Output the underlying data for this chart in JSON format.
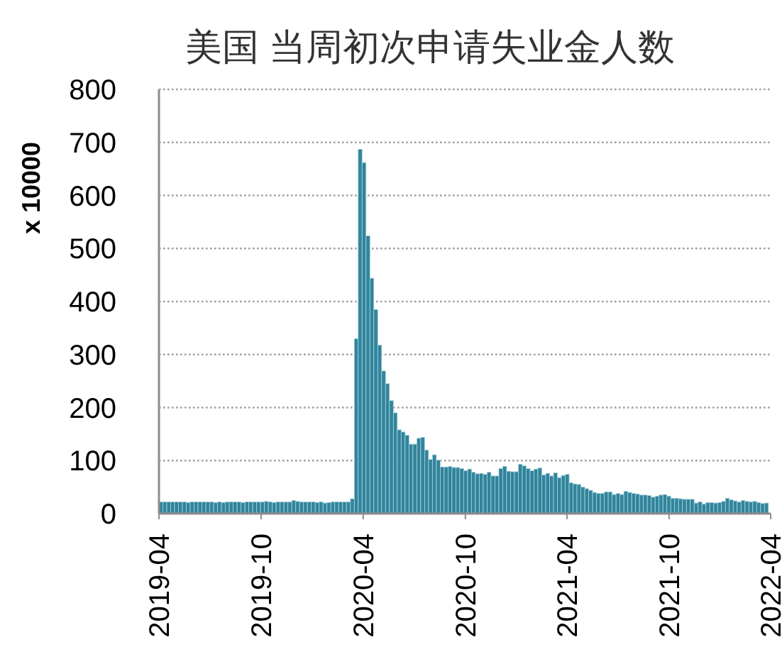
{
  "chart_data": {
    "type": "bar",
    "title": "美国 当周初次申请失业金人数",
    "ylabel": "x 10000",
    "color": "#31849b",
    "x": [
      "2019-04-01",
      "2019-04-08",
      "2019-04-15",
      "2019-04-22",
      "2019-04-29",
      "2019-05-06",
      "2019-05-13",
      "2019-05-20",
      "2019-05-27",
      "2019-06-03",
      "2019-06-10",
      "2019-06-17",
      "2019-06-24",
      "2019-07-01",
      "2019-07-08",
      "2019-07-15",
      "2019-07-22",
      "2019-07-29",
      "2019-08-05",
      "2019-08-12",
      "2019-08-19",
      "2019-08-26",
      "2019-09-02",
      "2019-09-09",
      "2019-09-16",
      "2019-09-23",
      "2019-09-30",
      "2019-10-07",
      "2019-10-14",
      "2019-10-21",
      "2019-10-28",
      "2019-11-04",
      "2019-11-11",
      "2019-11-18",
      "2019-11-25",
      "2019-12-02",
      "2019-12-09",
      "2019-12-16",
      "2019-12-23",
      "2019-12-30",
      "2020-01-06",
      "2020-01-13",
      "2020-01-20",
      "2020-01-27",
      "2020-02-03",
      "2020-02-10",
      "2020-02-17",
      "2020-02-24",
      "2020-03-02",
      "2020-03-09",
      "2020-03-16",
      "2020-03-23",
      "2020-03-30",
      "2020-04-06",
      "2020-04-13",
      "2020-04-20",
      "2020-04-27",
      "2020-05-04",
      "2020-05-11",
      "2020-05-18",
      "2020-05-25",
      "2020-06-01",
      "2020-06-08",
      "2020-06-15",
      "2020-06-22",
      "2020-06-29",
      "2020-07-06",
      "2020-07-13",
      "2020-07-20",
      "2020-07-27",
      "2020-08-03",
      "2020-08-10",
      "2020-08-17",
      "2020-08-24",
      "2020-08-31",
      "2020-09-07",
      "2020-09-14",
      "2020-09-21",
      "2020-09-28",
      "2020-10-05",
      "2020-10-12",
      "2020-10-19",
      "2020-10-26",
      "2020-11-02",
      "2020-11-09",
      "2020-11-16",
      "2020-11-23",
      "2020-11-30",
      "2020-12-07",
      "2020-12-14",
      "2020-12-21",
      "2020-12-28",
      "2021-01-04",
      "2021-01-11",
      "2021-01-18",
      "2021-01-25",
      "2021-02-01",
      "2021-02-08",
      "2021-02-15",
      "2021-02-22",
      "2021-03-01",
      "2021-03-08",
      "2021-03-15",
      "2021-03-22",
      "2021-03-29",
      "2021-04-05",
      "2021-04-12",
      "2021-04-19",
      "2021-04-26",
      "2021-05-03",
      "2021-05-10",
      "2021-05-17",
      "2021-05-24",
      "2021-05-31",
      "2021-06-07",
      "2021-06-14",
      "2021-06-21",
      "2021-06-28",
      "2021-07-05",
      "2021-07-12",
      "2021-07-19",
      "2021-07-26",
      "2021-08-02",
      "2021-08-09",
      "2021-08-16",
      "2021-08-23",
      "2021-08-30",
      "2021-09-06",
      "2021-09-13",
      "2021-09-20",
      "2021-09-27",
      "2021-10-04",
      "2021-10-11",
      "2021-10-18",
      "2021-10-25",
      "2021-11-01",
      "2021-11-08",
      "2021-11-15",
      "2021-11-22",
      "2021-11-29",
      "2021-12-06",
      "2021-12-13",
      "2021-12-20",
      "2021-12-27",
      "2022-01-03",
      "2022-01-10",
      "2022-01-17",
      "2022-01-24",
      "2022-01-31",
      "2022-02-07",
      "2022-02-14",
      "2022-02-21",
      "2022-02-28",
      "2022-03-07",
      "2022-03-14",
      "2022-03-21"
    ],
    "values": [
      22,
      22,
      22,
      22,
      22,
      22,
      22,
      21,
      22,
      22,
      22,
      22,
      22,
      22,
      21,
      22,
      21,
      22,
      22,
      22,
      22,
      21,
      22,
      22,
      22,
      22,
      22,
      23,
      22,
      21,
      22,
      22,
      22,
      22,
      25,
      23,
      22,
      22,
      22,
      22,
      21,
      22,
      20,
      21,
      22,
      22,
      22,
      22,
      22,
      28,
      330,
      687,
      662,
      524,
      444,
      385,
      318,
      269,
      245,
      213,
      190,
      158,
      154,
      148,
      131,
      131,
      142,
      144,
      120,
      102,
      111,
      101,
      88,
      88,
      89,
      87,
      87,
      85,
      81,
      84,
      78,
      75,
      76,
      74,
      78,
      71,
      71,
      85,
      89,
      80,
      79,
      79,
      93,
      90,
      85,
      81,
      84,
      86,
      73,
      76,
      71,
      77,
      68,
      72,
      74,
      58,
      56,
      55,
      50,
      47,
      44,
      40,
      38,
      38,
      41,
      41,
      36,
      38,
      36,
      42,
      40,
      38,
      37,
      35,
      35,
      34,
      31,
      33,
      35,
      36,
      33,
      29,
      29,
      28,
      27,
      27,
      27,
      20,
      22,
      18,
      21,
      21,
      20,
      21,
      23,
      29,
      26,
      24,
      22,
      25,
      23,
      22,
      23,
      21,
      19,
      20
    ],
    "xlim": [
      "2019-04",
      "2022-04"
    ],
    "xticks": [
      {
        "value": "2019-04",
        "label": "2019-04"
      },
      {
        "value": "2019-10",
        "label": "2019-10"
      },
      {
        "value": "2020-04",
        "label": "2020-04"
      },
      {
        "value": "2020-10",
        "label": "2020-10"
      },
      {
        "value": "2021-04",
        "label": "2021-04"
      },
      {
        "value": "2021-10",
        "label": "2021-10"
      },
      {
        "value": "2022-04",
        "label": "2022-04"
      }
    ],
    "ylim": [
      0,
      800
    ],
    "yticks": [
      0,
      100,
      200,
      300,
      400,
      500,
      600,
      700,
      800
    ],
    "grid": "y"
  }
}
